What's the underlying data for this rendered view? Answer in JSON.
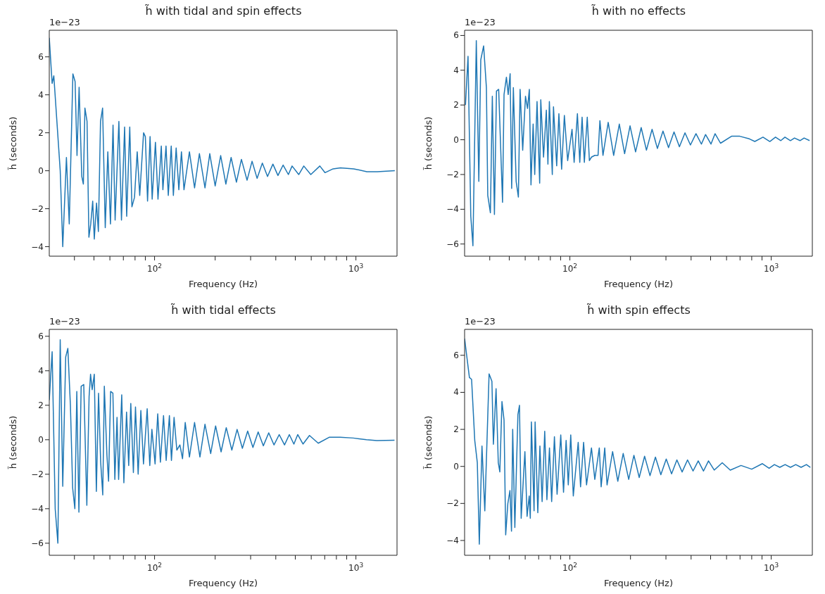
{
  "chart_data": [
    {
      "type": "line",
      "title": "h̃ with tidal and spin effects",
      "xlabel": "Frequency (Hz)",
      "ylabel": "h̃ (seconds)",
      "annotations": [
        "1e−23"
      ],
      "log": "x",
      "xlim": [
        30,
        1600
      ],
      "xticks": [
        {
          "value": 40,
          "label": null
        },
        {
          "value": 50,
          "label": null
        },
        {
          "value": 60,
          "label": null
        },
        {
          "value": 70,
          "label": null
        },
        {
          "value": 80,
          "label": null
        },
        {
          "value": 90,
          "label": null
        },
        {
          "value": 100,
          "label": "10$^{2}$"
        },
        {
          "value": 200,
          "label": null
        },
        {
          "value": 300,
          "label": null
        },
        {
          "value": 400,
          "label": null
        },
        {
          "value": 500,
          "label": null
        },
        {
          "value": 600,
          "label": null
        },
        {
          "value": 700,
          "label": null
        },
        {
          "value": 800,
          "label": null
        },
        {
          "value": 900,
          "label": null
        },
        {
          "value": 1000,
          "label": "10$^{3}$"
        }
      ],
      "ylim": [
        -4.5,
        7.4
      ],
      "yticks": [
        -4,
        -2,
        0,
        2,
        4,
        6
      ],
      "color": "#1f77b4",
      "x": [
        30,
        31,
        31.6,
        34,
        35,
        36.5,
        37.7,
        39.3,
        40.3,
        41.2,
        42.2,
        43.5,
        44.3,
        45.1,
        46.2,
        47.2,
        48.2,
        49.3,
        50.2,
        51.5,
        52.6,
        53.9,
        55.2,
        56.9,
        58.6,
        60.4,
        62.2,
        63.7,
        66.5,
        68.5,
        71,
        72.7,
        75.3,
        77.2,
        79.5,
        82,
        84.4,
        88.2,
        90,
        92.3,
        95,
        97.3,
        101,
        104,
        108,
        110,
        114,
        117,
        121,
        124,
        128,
        132,
        136,
        140,
        149,
        158,
        167,
        178,
        188,
        200,
        213,
        226,
        240,
        255,
        270,
        288,
        305,
        323,
        343,
        364,
        387,
        410,
        435,
        462,
        482,
        520,
        551,
        597,
        662,
        702,
        770,
        838,
        976,
        1133,
        1277,
        1560
      ],
      "values": [
        7.0,
        4.6,
        5.0,
        0,
        -4.0,
        0.7,
        -2.8,
        5.1,
        4.7,
        0.8,
        4.4,
        -0.3,
        -0.7,
        3.3,
        2.6,
        -3.5,
        -2.8,
        -1.6,
        -3.6,
        -1.7,
        -3.2,
        2.6,
        3.3,
        -3.0,
        1.0,
        -2.8,
        2.4,
        -2.6,
        2.6,
        -2.6,
        2.3,
        -2.4,
        2.3,
        -1.9,
        -1.4,
        1.0,
        -1.3,
        2.0,
        1.8,
        -1.6,
        1.8,
        -1.5,
        1.5,
        -1.5,
        1.3,
        -1.0,
        1.3,
        -1.3,
        1.3,
        -1.3,
        1.2,
        -1.0,
        1.0,
        -1.0,
        1.0,
        -0.9,
        0.9,
        -0.9,
        0.9,
        -0.8,
        0.8,
        -0.7,
        0.7,
        -0.6,
        0.6,
        -0.5,
        0.5,
        -0.4,
        0.4,
        -0.3,
        0.35,
        -0.25,
        0.3,
        -0.2,
        0.25,
        -0.2,
        0.25,
        -0.2,
        0.25,
        -0.1,
        0.1,
        0.15,
        0.1,
        -0.05,
        -0.05,
        0
      ]
    },
    {
      "type": "line",
      "title": "h̃ with no effects",
      "xlabel": "Frequency (Hz)",
      "ylabel": "h̃ (seconds)",
      "annotations": [
        "1e−23"
      ],
      "log": "x",
      "xlim": [
        30,
        1600
      ],
      "xticks": [
        {
          "value": 40,
          "label": null
        },
        {
          "value": 50,
          "label": null
        },
        {
          "value": 60,
          "label": null
        },
        {
          "value": 70,
          "label": null
        },
        {
          "value": 80,
          "label": null
        },
        {
          "value": 90,
          "label": null
        },
        {
          "value": 100,
          "label": "10$^{2}$"
        },
        {
          "value": 200,
          "label": null
        },
        {
          "value": 300,
          "label": null
        },
        {
          "value": 400,
          "label": null
        },
        {
          "value": 500,
          "label": null
        },
        {
          "value": 600,
          "label": null
        },
        {
          "value": 700,
          "label": null
        },
        {
          "value": 800,
          "label": null
        },
        {
          "value": 900,
          "label": null
        },
        {
          "value": 1000,
          "label": "10$^{3}$"
        }
      ],
      "ylim": [
        -6.7,
        6.3
      ],
      "yticks": [
        -6,
        -4,
        -2,
        0,
        2,
        4,
        6
      ],
      "color": "#1f77b4",
      "x": [
        30.3,
        31.2,
        32.2,
        33,
        34.3,
        35.3,
        36.1,
        37.3,
        38.5,
        39.1,
        40.3,
        41.2,
        42.2,
        43.2,
        44.3,
        46.3,
        47.1,
        48.4,
        49.4,
        50.5,
        51.4,
        52.4,
        54.1,
        55.5,
        56.6,
        58.3,
        60.2,
        61.6,
        62.9,
        64.1,
        65.7,
        66.9,
        68.7,
        70.8,
        71.7,
        74,
        76.4,
        77.8,
        79.1,
        81.8,
        82.9,
        86,
        88.2,
        91,
        93.9,
        97.5,
        102.5,
        105,
        109,
        112,
        115,
        118,
        122,
        125,
        128,
        133,
        138,
        141,
        146,
        155,
        165,
        176,
        187,
        199,
        212,
        226,
        240,
        256,
        272,
        290,
        309,
        329,
        350,
        373,
        397,
        423,
        450,
        472,
        502,
        526,
        560,
        635,
        698,
        779,
        829,
        910,
        984,
        1050,
        1116,
        1170,
        1245,
        1305,
        1390,
        1456,
        1550
      ],
      "values": [
        2.0,
        4.8,
        -4.4,
        -6.1,
        5.7,
        -2.4,
        4.6,
        5.4,
        3.0,
        -3.2,
        -4.2,
        2.5,
        -4.3,
        2.8,
        2.9,
        -3.6,
        2.6,
        3.6,
        2.6,
        3.8,
        -2.8,
        3.0,
        -2.4,
        -3.3,
        2.9,
        -0.6,
        2.5,
        1.8,
        2.9,
        -2.6,
        0.9,
        -2.0,
        2.2,
        -2.5,
        2.3,
        -1.0,
        1.7,
        -1.4,
        2.2,
        -2.0,
        1.9,
        -1.5,
        1.5,
        -1.7,
        1.4,
        -1.2,
        0.6,
        -1.3,
        1.5,
        -1.3,
        1.3,
        -1.3,
        1.3,
        -1.2,
        -1.0,
        -0.9,
        -0.9,
        1.1,
        -0.9,
        1.0,
        -0.9,
        0.9,
        -0.8,
        0.8,
        -0.7,
        0.7,
        -0.6,
        0.6,
        -0.5,
        0.5,
        -0.45,
        0.45,
        -0.4,
        0.4,
        -0.3,
        0.35,
        -0.25,
        0.3,
        -0.25,
        0.35,
        -0.2,
        0.2,
        0.2,
        0.05,
        -0.1,
        0.15,
        -0.1,
        0.15,
        -0.05,
        0.15,
        -0.05,
        0.1,
        -0.05,
        0.1,
        -0.05
      ]
    },
    {
      "type": "line",
      "title": "h̃ with tidal effects",
      "xlabel": "Frequency (Hz)",
      "ylabel": "h̃ (seconds)",
      "annotations": [
        "1e−23"
      ],
      "log": "x",
      "xlim": [
        30,
        1600
      ],
      "xticks": [
        {
          "value": 40,
          "label": null
        },
        {
          "value": 50,
          "label": null
        },
        {
          "value": 60,
          "label": null
        },
        {
          "value": 70,
          "label": null
        },
        {
          "value": 80,
          "label": null
        },
        {
          "value": 90,
          "label": null
        },
        {
          "value": 100,
          "label": "10$^{2}$"
        },
        {
          "value": 200,
          "label": null
        },
        {
          "value": 300,
          "label": null
        },
        {
          "value": 400,
          "label": null
        },
        {
          "value": 500,
          "label": null
        },
        {
          "value": 600,
          "label": null
        },
        {
          "value": 700,
          "label": null
        },
        {
          "value": 800,
          "label": null
        },
        {
          "value": 900,
          "label": null
        },
        {
          "value": 1000,
          "label": "10$^{3}$"
        }
      ],
      "ylim": [
        -6.7,
        6.4
      ],
      "yticks": [
        -6,
        -4,
        -2,
        0,
        2,
        4,
        6
      ],
      "color": "#1f77b4",
      "x": [
        30,
        31,
        32.1,
        33.1,
        34,
        35,
        36.2,
        37.1,
        38.2,
        39.2,
        40.2,
        41.1,
        42.1,
        43.2,
        44.5,
        46.1,
        47.3,
        48.1,
        49,
        50.2,
        51.4,
        52.7,
        54,
        55.3,
        56.3,
        58,
        59.1,
        60.5,
        62.1,
        63.5,
        65.1,
        66.3,
        68.7,
        70.4,
        72.6,
        74.4,
        76.2,
        78.5,
        80.4,
        82.9,
        85.5,
        88.1,
        91.9,
        94.7,
        97,
        100.6,
        103.7,
        106.9,
        110.8,
        114.2,
        118.5,
        121.3,
        125,
        129,
        133.6,
        137.7,
        142,
        149,
        158,
        168,
        178,
        190,
        201,
        214,
        227,
        242,
        257,
        273,
        290,
        308,
        327,
        347,
        369,
        392,
        416,
        442,
        467,
        492,
        514,
        546,
        588,
        650,
        739,
        834,
        970,
        1128,
        1271,
        1555
      ],
      "values": [
        2.3,
        5.1,
        -4.0,
        -6.0,
        5.8,
        -2.7,
        4.8,
        5.3,
        2.0,
        -2.8,
        -4.0,
        2.8,
        -4.2,
        3.1,
        3.2,
        -3.8,
        2.5,
        3.8,
        2.9,
        3.8,
        -3.0,
        2.7,
        -1.3,
        -3.2,
        3.1,
        -0.9,
        -2.4,
        2.8,
        2.7,
        -2.3,
        1.3,
        -2.3,
        2.6,
        -2.5,
        1.6,
        -1.5,
        2.1,
        -1.9,
        1.9,
        -2.0,
        1.7,
        -1.4,
        1.8,
        -1.5,
        0.6,
        -1.4,
        1.5,
        -1.3,
        1.4,
        -1.2,
        1.4,
        -1.2,
        1.3,
        -0.6,
        -0.3,
        -1.1,
        1.0,
        -1.0,
        1.0,
        -1.0,
        0.9,
        -0.8,
        0.8,
        -0.7,
        0.7,
        -0.6,
        0.6,
        -0.5,
        0.5,
        -0.45,
        0.45,
        -0.35,
        0.4,
        -0.3,
        0.3,
        -0.3,
        0.3,
        -0.25,
        0.3,
        -0.25,
        0.25,
        -0.2,
        0.15,
        0.15,
        0.1,
        0.0,
        -0.05,
        -0.03
      ]
    },
    {
      "type": "line",
      "title": "h̃ with spin effects",
      "xlabel": "Frequency (Hz)",
      "ylabel": "h̃ (seconds)",
      "annotations": [
        "1e−23"
      ],
      "log": "x",
      "xlim": [
        30,
        1600
      ],
      "xticks": [
        {
          "value": 40,
          "label": null
        },
        {
          "value": 50,
          "label": null
        },
        {
          "value": 60,
          "label": null
        },
        {
          "value": 70,
          "label": null
        },
        {
          "value": 80,
          "label": null
        },
        {
          "value": 90,
          "label": null
        },
        {
          "value": 100,
          "label": "10$^{2}$"
        },
        {
          "value": 200,
          "label": null
        },
        {
          "value": 300,
          "label": null
        },
        {
          "value": 400,
          "label": null
        },
        {
          "value": 500,
          "label": null
        },
        {
          "value": 600,
          "label": null
        },
        {
          "value": 700,
          "label": null
        },
        {
          "value": 800,
          "label": null
        },
        {
          "value": 900,
          "label": null
        },
        {
          "value": 1000,
          "label": "10$^{3}$"
        }
      ],
      "ylim": [
        -4.8,
        7.4
      ],
      "yticks": [
        -4,
        -2,
        0,
        2,
        4,
        6
      ],
      "color": "#1f77b4",
      "x": [
        30,
        31.7,
        32.5,
        33.7,
        34.7,
        35.5,
        36.6,
        37.8,
        39.7,
        41,
        41.7,
        43,
        44.1,
        44.9,
        46,
        47.1,
        48,
        49.2,
        50.4,
        51.3,
        52,
        53.3,
        55.2,
        56.2,
        57.3,
        59.8,
        61.3,
        62.8,
        63.6,
        64.4,
        66.4,
        67.2,
        69.3,
        71,
        72.8,
        75,
        76.9,
        79.2,
        81.2,
        83.8,
        86.4,
        90.1,
        93,
        95.8,
        98.2,
        101,
        104,
        110,
        113,
        117,
        121,
        128,
        133,
        140,
        143,
        149,
        153,
        163,
        173,
        184,
        196,
        208,
        221,
        235,
        250,
        266,
        283,
        301,
        320,
        340,
        361,
        384,
        409,
        434,
        461,
        488,
        521,
        571,
        626,
        708,
        800,
        904,
        976,
        1037,
        1103,
        1172,
        1246,
        1324,
        1407,
        1495,
        1565
      ],
      "values": [
        6.9,
        4.8,
        4.7,
        1.4,
        0.2,
        -4.2,
        1.1,
        -2.4,
        5.0,
        4.6,
        1.2,
        4.2,
        0.2,
        -0.3,
        3.5,
        2.5,
        -3.7,
        -2.0,
        -1.3,
        -3.5,
        2.0,
        -3.3,
        2.8,
        3.3,
        -2.8,
        0.8,
        -2.7,
        -1.6,
        -2.8,
        2.4,
        -2.4,
        2.4,
        -2.5,
        1.1,
        -1.9,
        1.9,
        -1.8,
        1.0,
        -1.9,
        1.6,
        -1.5,
        1.7,
        -1.4,
        1.4,
        -1.0,
        1.7,
        -1.6,
        1.3,
        -1.1,
        1.3,
        -1.0,
        1.0,
        -0.7,
        1.0,
        -1.1,
        1.0,
        -1.0,
        0.8,
        -0.8,
        0.7,
        -0.7,
        0.6,
        -0.6,
        0.55,
        -0.5,
        0.5,
        -0.45,
        0.4,
        -0.4,
        0.35,
        -0.3,
        0.35,
        -0.25,
        0.3,
        -0.25,
        0.3,
        -0.2,
        0.2,
        -0.2,
        0.05,
        -0.15,
        0.15,
        -0.1,
        0.1,
        -0.05,
        0.1,
        -0.05,
        0.1,
        -0.05,
        0.1,
        -0.05
      ]
    }
  ]
}
